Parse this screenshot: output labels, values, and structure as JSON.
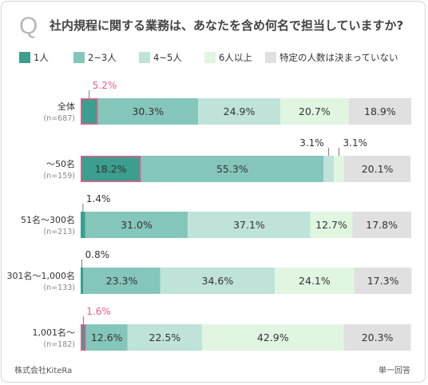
{
  "title": "社内規程に関する業務は、あなたを含め何名で担当していますか?",
  "q_mark": "Q",
  "footer_left": "株式会社KiteRa",
  "footer_right": "単一回答",
  "colors": {
    "s1": "#3c9e8e",
    "s2": "#85c6bb",
    "s3": "#bfe3d8",
    "s4": "#e0f6e1",
    "s5": "#e0e0e0",
    "highlight": "#e65c8a"
  },
  "chart_data": {
    "type": "bar",
    "orientation": "horizontal",
    "stacked": true,
    "categories": [
      {
        "label": "全体",
        "sub": "(n=687)"
      },
      {
        "label": "〜50名",
        "sub": "(n=159)"
      },
      {
        "label": "51名〜300名",
        "sub": "(n=213)"
      },
      {
        "label": "301名〜1,000名",
        "sub": "(n=133)"
      },
      {
        "label": "1,001名〜",
        "sub": "(n=182)"
      }
    ],
    "series": [
      {
        "name": "1人",
        "values": [
          5.2,
          18.2,
          1.4,
          0.8,
          1.6
        ]
      },
      {
        "name": "2~3人",
        "values": [
          30.3,
          55.3,
          31.0,
          23.3,
          12.6
        ]
      },
      {
        "name": "4~5人",
        "values": [
          24.9,
          3.1,
          37.1,
          34.6,
          22.5
        ]
      },
      {
        "name": "6人以上",
        "values": [
          20.7,
          3.1,
          12.7,
          24.1,
          42.9
        ]
      },
      {
        "name": "特定の人数は決まっていない",
        "values": [
          18.9,
          20.1,
          17.8,
          17.3,
          20.3
        ]
      }
    ],
    "highlight_cells": [
      [
        0,
        0
      ],
      [
        1,
        0
      ],
      [
        4,
        0
      ]
    ],
    "outside_labels": [
      [
        0,
        0
      ],
      [
        1,
        2
      ],
      [
        1,
        3
      ],
      [
        2,
        0
      ],
      [
        3,
        0
      ],
      [
        4,
        0
      ]
    ],
    "xlim": [
      0,
      100
    ]
  }
}
